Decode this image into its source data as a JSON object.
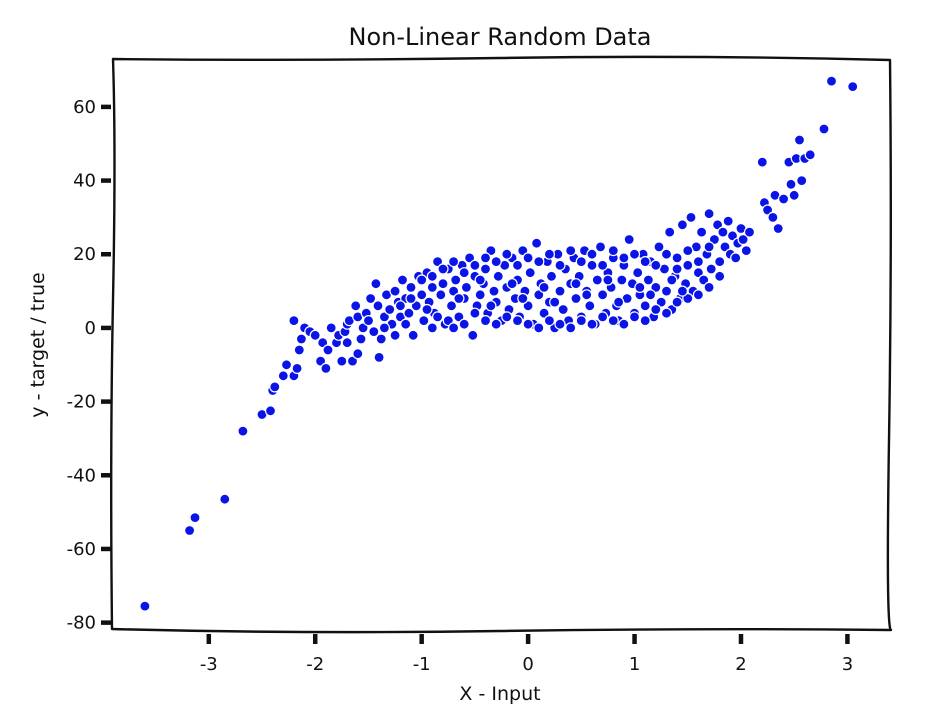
{
  "chart_data": {
    "type": "scatter",
    "title": "Non-Linear Random Data",
    "xlabel": "X - Input",
    "ylabel": "y - target / true",
    "xlim": [
      -3.9,
      3.4
    ],
    "ylim": [
      -82,
      73
    ],
    "xticks": [
      -3,
      -2,
      -1,
      0,
      1,
      2,
      3
    ],
    "yticks": [
      -80,
      -60,
      -40,
      -20,
      0,
      20,
      40,
      60
    ],
    "xtick_labels": [
      "-3",
      "-2",
      "-1",
      "0",
      "1",
      "2",
      "3"
    ],
    "ytick_labels": [
      "-80",
      "-60",
      "-40",
      "-20",
      "0",
      "20",
      "40",
      "60"
    ],
    "grid": false,
    "marker_color": "#0a14e6",
    "marker_edge_color": "#ffffff",
    "points": [
      [
        -3.6,
        -75.5
      ],
      [
        -3.18,
        -55
      ],
      [
        -3.13,
        -51.5
      ],
      [
        -2.85,
        -46.5
      ],
      [
        -2.68,
        -28
      ],
      [
        -2.5,
        -23.5
      ],
      [
        -2.42,
        -22.5
      ],
      [
        -2.4,
        -17
      ],
      [
        -2.38,
        -16
      ],
      [
        -2.3,
        -13
      ],
      [
        -2.27,
        -10
      ],
      [
        -2.2,
        -13
      ],
      [
        -2.17,
        -11
      ],
      [
        -2.2,
        2
      ],
      [
        -2.15,
        -6
      ],
      [
        -2.13,
        -3
      ],
      [
        -2.1,
        0
      ],
      [
        -2.05,
        -1
      ],
      [
        -2.0,
        -2
      ],
      [
        -1.95,
        -9
      ],
      [
        -1.93,
        -4
      ],
      [
        -1.9,
        -11
      ],
      [
        -1.88,
        -6
      ],
      [
        -1.85,
        0
      ],
      [
        -1.8,
        -4
      ],
      [
        -1.78,
        -2
      ],
      [
        -1.75,
        -9
      ],
      [
        -1.72,
        -1
      ],
      [
        -1.7,
        1
      ],
      [
        -1.68,
        2
      ],
      [
        -1.65,
        -9
      ],
      [
        -1.62,
        6
      ],
      [
        -1.6,
        3
      ],
      [
        -1.57,
        -3
      ],
      [
        -1.55,
        0
      ],
      [
        -1.52,
        4
      ],
      [
        -1.5,
        2
      ],
      [
        -1.48,
        8
      ],
      [
        -1.45,
        -1
      ],
      [
        -1.43,
        12
      ],
      [
        -1.41,
        6
      ],
      [
        -1.4,
        -8
      ],
      [
        -1.38,
        -3
      ],
      [
        -1.35,
        3
      ],
      [
        -1.33,
        9
      ],
      [
        -1.3,
        5
      ],
      [
        -1.28,
        1
      ],
      [
        -1.25,
        10
      ],
      [
        -1.22,
        7
      ],
      [
        -1.2,
        3
      ],
      [
        -1.18,
        13
      ],
      [
        -1.15,
        8
      ],
      [
        -1.12,
        4
      ],
      [
        -1.1,
        11
      ],
      [
        -1.08,
        -2
      ],
      [
        -1.05,
        6
      ],
      [
        -1.03,
        14
      ],
      [
        -1.0,
        9
      ],
      [
        -0.98,
        2
      ],
      [
        -0.95,
        15
      ],
      [
        -0.93,
        7
      ],
      [
        -0.9,
        11
      ],
      [
        -0.88,
        4
      ],
      [
        -0.85,
        18
      ],
      [
        -0.82,
        9
      ],
      [
        -0.8,
        12
      ],
      [
        -0.78,
        1
      ],
      [
        -0.75,
        16
      ],
      [
        -0.72,
        6
      ],
      [
        -0.7,
        10
      ],
      [
        -0.68,
        13
      ],
      [
        -0.65,
        3
      ],
      [
        -0.62,
        17
      ],
      [
        -0.6,
        8
      ],
      [
        -0.58,
        11
      ],
      [
        -0.55,
        19
      ],
      [
        -0.52,
        -2
      ],
      [
        -0.5,
        14
      ],
      [
        -0.48,
        6
      ],
      [
        -0.45,
        9
      ],
      [
        -0.42,
        12
      ],
      [
        -0.4,
        16
      ],
      [
        -0.38,
        4
      ],
      [
        -0.35,
        21
      ],
      [
        -0.32,
        10
      ],
      [
        -0.3,
        7
      ],
      [
        -0.28,
        14
      ],
      [
        -0.25,
        2
      ],
      [
        -0.22,
        17
      ],
      [
        -0.2,
        11
      ],
      [
        -0.18,
        5
      ],
      [
        -0.15,
        19
      ],
      [
        -0.12,
        8
      ],
      [
        -0.1,
        13
      ],
      [
        -0.08,
        3
      ],
      [
        -0.05,
        21
      ],
      [
        -0.03,
        10
      ],
      [
        0.0,
        6
      ],
      [
        0.02,
        15
      ],
      [
        0.05,
        1
      ],
      [
        0.08,
        23
      ],
      [
        0.1,
        9
      ],
      [
        0.12,
        12
      ],
      [
        0.15,
        4
      ],
      [
        0.18,
        18
      ],
      [
        0.2,
        7
      ],
      [
        0.22,
        14
      ],
      [
        0.25,
        0
      ],
      [
        0.28,
        20
      ],
      [
        0.3,
        10
      ],
      [
        0.33,
        5
      ],
      [
        0.35,
        16
      ],
      [
        0.38,
        2
      ],
      [
        0.4,
        12
      ],
      [
        0.43,
        19
      ],
      [
        0.45,
        8
      ],
      [
        0.48,
        14
      ],
      [
        0.5,
        3
      ],
      [
        0.53,
        21
      ],
      [
        0.55,
        10
      ],
      [
        0.58,
        6
      ],
      [
        0.6,
        17
      ],
      [
        0.63,
        1
      ],
      [
        0.65,
        13
      ],
      [
        0.68,
        22
      ],
      [
        0.7,
        9
      ],
      [
        0.73,
        4
      ],
      [
        0.75,
        15
      ],
      [
        0.78,
        11
      ],
      [
        0.8,
        19
      ],
      [
        0.83,
        6
      ],
      [
        0.85,
        2
      ],
      [
        0.88,
        13
      ],
      [
        0.9,
        17
      ],
      [
        0.93,
        8
      ],
      [
        0.95,
        24
      ],
      [
        0.98,
        12
      ],
      [
        1.0,
        4
      ],
      [
        1.03,
        15
      ],
      [
        1.05,
        9
      ],
      [
        1.08,
        20
      ],
      [
        1.1,
        6
      ],
      [
        1.13,
        13
      ],
      [
        1.15,
        18
      ],
      [
        1.18,
        3
      ],
      [
        1.2,
        11
      ],
      [
        1.23,
        22
      ],
      [
        1.25,
        7
      ],
      [
        1.28,
        16
      ],
      [
        1.3,
        10
      ],
      [
        1.33,
        26
      ],
      [
        1.35,
        5
      ],
      [
        1.38,
        14
      ],
      [
        1.4,
        19
      ],
      [
        1.43,
        8
      ],
      [
        1.45,
        28
      ],
      [
        1.48,
        12
      ],
      [
        1.5,
        17
      ],
      [
        1.53,
        30
      ],
      [
        1.55,
        10
      ],
      [
        1.58,
        22
      ],
      [
        1.6,
        15
      ],
      [
        1.63,
        26
      ],
      [
        1.65,
        13
      ],
      [
        1.68,
        20
      ],
      [
        1.7,
        31
      ],
      [
        1.72,
        16
      ],
      [
        1.75,
        24
      ],
      [
        1.78,
        28
      ],
      [
        1.8,
        18
      ],
      [
        1.83,
        26
      ],
      [
        1.85,
        22
      ],
      [
        1.88,
        29
      ],
      [
        1.9,
        20
      ],
      [
        1.92,
        25
      ],
      [
        1.95,
        19
      ],
      [
        1.97,
        23
      ],
      [
        2.0,
        27
      ],
      [
        2.02,
        24
      ],
      [
        2.05,
        21
      ],
      [
        2.08,
        26
      ],
      [
        2.2,
        45
      ],
      [
        2.22,
        34
      ],
      [
        2.25,
        32
      ],
      [
        2.3,
        30
      ],
      [
        2.32,
        36
      ],
      [
        2.35,
        27
      ],
      [
        2.4,
        35
      ],
      [
        2.45,
        45
      ],
      [
        2.47,
        39
      ],
      [
        2.5,
        36
      ],
      [
        2.52,
        46
      ],
      [
        2.55,
        51
      ],
      [
        2.57,
        40
      ],
      [
        2.6,
        46
      ],
      [
        2.65,
        47
      ],
      [
        2.78,
        54
      ],
      [
        2.85,
        67
      ],
      [
        3.05,
        65.5
      ],
      [
        -0.95,
        5
      ],
      [
        -0.9,
        0
      ],
      [
        -0.85,
        3
      ],
      [
        -0.75,
        2
      ],
      [
        -0.7,
        0
      ],
      [
        -0.6,
        1
      ],
      [
        -0.5,
        4
      ],
      [
        -0.4,
        2
      ],
      [
        -0.3,
        1
      ],
      [
        -0.2,
        3
      ],
      [
        -0.1,
        2
      ],
      [
        0.0,
        1
      ],
      [
        0.1,
        0
      ],
      [
        0.2,
        2
      ],
      [
        0.3,
        1
      ],
      [
        0.4,
        0
      ],
      [
        0.5,
        2
      ],
      [
        0.6,
        1
      ],
      [
        0.7,
        3
      ],
      [
        0.8,
        2
      ],
      [
        0.9,
        1
      ],
      [
        1.0,
        3
      ],
      [
        1.1,
        2
      ],
      [
        1.2,
        5
      ],
      [
        1.3,
        4
      ],
      [
        1.4,
        7
      ],
      [
        1.5,
        8
      ],
      [
        1.6,
        9
      ],
      [
        1.7,
        11
      ],
      [
        1.8,
        14
      ],
      [
        -1.2,
        6
      ],
      [
        -1.1,
        8
      ],
      [
        -1.0,
        13
      ],
      [
        -0.9,
        14
      ],
      [
        -0.8,
        16
      ],
      [
        -0.7,
        18
      ],
      [
        -0.6,
        15
      ],
      [
        -0.5,
        17
      ],
      [
        -0.4,
        19
      ],
      [
        -0.3,
        18
      ],
      [
        -0.2,
        20
      ],
      [
        -0.1,
        17
      ],
      [
        0.0,
        19
      ],
      [
        0.1,
        18
      ],
      [
        0.2,
        20
      ],
      [
        0.3,
        17
      ],
      [
        0.4,
        21
      ],
      [
        0.5,
        18
      ],
      [
        0.6,
        20
      ],
      [
        0.7,
        17
      ],
      [
        0.8,
        21
      ],
      [
        0.9,
        19
      ],
      [
        1.0,
        20
      ],
      [
        1.1,
        18
      ],
      [
        1.2,
        17
      ],
      [
        1.3,
        20
      ],
      [
        1.4,
        16
      ],
      [
        1.5,
        21
      ],
      [
        1.6,
        18
      ],
      [
        1.7,
        22
      ],
      [
        -0.65,
        8
      ],
      [
        -0.35,
        6
      ],
      [
        -0.05,
        8
      ],
      [
        0.25,
        7
      ],
      [
        0.55,
        9
      ],
      [
        0.85,
        7
      ],
      [
        1.15,
        9
      ],
      [
        1.45,
        10
      ],
      [
        -0.45,
        13
      ],
      [
        -0.15,
        12
      ],
      [
        0.15,
        11
      ],
      [
        0.45,
        12
      ],
      [
        0.75,
        13
      ],
      [
        1.05,
        11
      ],
      [
        1.35,
        13
      ],
      [
        -1.35,
        0
      ],
      [
        -1.25,
        -2
      ],
      [
        -1.15,
        1
      ],
      [
        -1.6,
        -7
      ],
      [
        -1.7,
        -4
      ]
    ]
  }
}
